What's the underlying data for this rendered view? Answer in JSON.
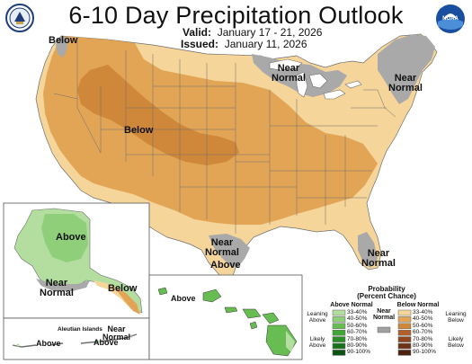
{
  "header": {
    "title": "6-10 Day Precipitation Outlook",
    "valid_label": "Valid:",
    "valid_value": "January 17 - 21, 2026",
    "issued_label": "Issued:",
    "issued_value": "January 11, 2026",
    "left_logo_icon": "usda-seal-icon",
    "right_logo_icon": "noaa-logo-icon",
    "right_logo_text": "NOAA"
  },
  "map_labels": {
    "below_nw": "Below",
    "near_normal_ne": "Near\nNormal",
    "near_normal_east": "Near\nNormal",
    "below_center": "Below",
    "near_normal_tx": "Near\nNormal",
    "above_tx": "Above",
    "near_normal_fl": "Near\nNormal",
    "above_ak": "Above",
    "near_normal_ak": "Near\nNormal",
    "below_ak": "Below",
    "above_hi": "Above",
    "aleutian_title": "Aleutian Islands",
    "above_aleutian_1": "Above",
    "near_normal_aleutian": "Near\nNormal",
    "above_aleutian_2": "Above"
  },
  "legend": {
    "title": "Probability\n(Percent Chance)",
    "above_head": "Above Normal",
    "near_head": "Near\nNormal",
    "below_head": "Below Normal",
    "leaning_above": "Leaning\nAbove",
    "likely_above": "Likely\nAbove",
    "leaning_below": "Leaning\nBelow",
    "likely_below": "Likely\nBelow",
    "ranges": [
      "33-40%",
      "40-50%",
      "50-60%",
      "60-70%",
      "70-80%",
      "80-90%",
      "90-100%"
    ],
    "above_colors": [
      "#b3dea0",
      "#8fcf79",
      "#67bd52",
      "#43a535",
      "#2b8d27",
      "#1a711b",
      "#0c5210"
    ],
    "below_colors": [
      "#f5d59a",
      "#e2a556",
      "#cf873a",
      "#b25f2a",
      "#8f4520",
      "#6f3318",
      "#4d2210"
    ],
    "near_color": "#a0a0a0"
  },
  "colors": {
    "near_normal": "#a9a9a9",
    "below_33_40": "#f5d59a",
    "below_40_50": "#e2a556",
    "below_50_60": "#cf873a",
    "above_33_40": "#b3dea0",
    "above_40_50": "#8fcf79",
    "above_50_60": "#67bd52",
    "water": "#ffffff",
    "borders": "#555555"
  }
}
